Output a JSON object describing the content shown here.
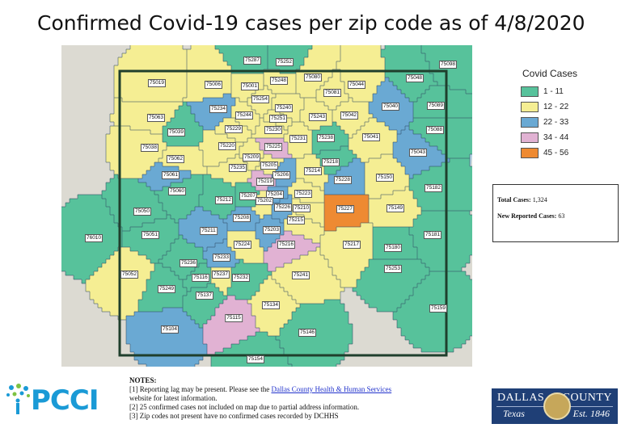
{
  "title": "Confirmed Covid-19 cases per zip code as of 4/8/2020",
  "colors": {
    "c1_11": "#57c29b",
    "c12_22": "#f5ee93",
    "c22_33": "#6aa9d3",
    "c34_44": "#e1b2d3",
    "c45_56": "#ee8a32",
    "background": "#dcdad2"
  },
  "legend": {
    "title": "Covid Cases",
    "items": [
      {
        "label": "1 - 11",
        "color": "#57c29b"
      },
      {
        "label": "12 - 22",
        "color": "#f5ee93"
      },
      {
        "label": "22 - 33",
        "color": "#6aa9d3"
      },
      {
        "label": "34 - 44",
        "color": "#e1b2d3"
      },
      {
        "label": "45 - 56",
        "color": "#ee8a32"
      }
    ]
  },
  "totals": {
    "total_label": "Total Cases:",
    "total_value": "1,324",
    "new_label": "New Reported Cases:",
    "new_value": "63"
  },
  "notes": {
    "heading": "NOTES:",
    "n1_pre": "[1] Reporting lag may be present. Please see the ",
    "n1_link": "Dallas County Health & Human Services",
    "n1_post": "website for latest information.",
    "n2": "[2] 25 confirmed cases not included on map due to partial address information.",
    "n3": "[3] Zip codes not present have no confirmed cases recorded by DCHHS"
  },
  "pcci_logo": "PCCI",
  "county_logo": {
    "word1": "DALLAS",
    "word2": "COUNTY",
    "word3": "Texas",
    "word4": "Est. 1846"
  },
  "zip_labels": [
    {
      "zip": "75287",
      "cat": "c1_11"
    },
    {
      "zip": "75252",
      "cat": "c1_11"
    },
    {
      "zip": "75098",
      "cat": "c1_11"
    },
    {
      "zip": "75080",
      "cat": "c12_22"
    },
    {
      "zip": "75248",
      "cat": "c12_22"
    },
    {
      "zip": "75048",
      "cat": "c1_11"
    },
    {
      "zip": "75019",
      "cat": "c12_22"
    },
    {
      "zip": "75006",
      "cat": "c12_22"
    },
    {
      "zip": "75001",
      "cat": "c12_22"
    },
    {
      "zip": "75044",
      "cat": "c12_22"
    },
    {
      "zip": "75081",
      "cat": "c12_22"
    },
    {
      "zip": "75254",
      "cat": "c12_22"
    },
    {
      "zip": "75040",
      "cat": "c22_33"
    },
    {
      "zip": "75089",
      "cat": "c1_11"
    },
    {
      "zip": "75234",
      "cat": "c22_33"
    },
    {
      "zip": "75240",
      "cat": "c12_22"
    },
    {
      "zip": "75063",
      "cat": "c12_22"
    },
    {
      "zip": "75244",
      "cat": "c12_22"
    },
    {
      "zip": "75251",
      "cat": "c12_22"
    },
    {
      "zip": "75243",
      "cat": "c12_22"
    },
    {
      "zip": "75042",
      "cat": "c12_22"
    },
    {
      "zip": "75229",
      "cat": "c12_22"
    },
    {
      "zip": "75230",
      "cat": "c12_22"
    },
    {
      "zip": "75088",
      "cat": "c1_11"
    },
    {
      "zip": "75039",
      "cat": "c1_11"
    },
    {
      "zip": "75231",
      "cat": "c12_22"
    },
    {
      "zip": "75238",
      "cat": "c1_11"
    },
    {
      "zip": "75041",
      "cat": "c12_22"
    },
    {
      "zip": "75038",
      "cat": "c12_22"
    },
    {
      "zip": "75220",
      "cat": "c12_22"
    },
    {
      "zip": "75225",
      "cat": "c34_44"
    },
    {
      "zip": "75043",
      "cat": "c22_33"
    },
    {
      "zip": "75209",
      "cat": "c12_22"
    },
    {
      "zip": "75062",
      "cat": "c12_22"
    },
    {
      "zip": "75235",
      "cat": "c12_22"
    },
    {
      "zip": "75205",
      "cat": "c12_22"
    },
    {
      "zip": "75218",
      "cat": "c1_11"
    },
    {
      "zip": "75214",
      "cat": "c12_22"
    },
    {
      "zip": "75061",
      "cat": "c22_33"
    },
    {
      "zip": "75206",
      "cat": "c22_33"
    },
    {
      "zip": "75219",
      "cat": "c34_44"
    },
    {
      "zip": "75150",
      "cat": "c12_22"
    },
    {
      "zip": "75228",
      "cat": "c22_33"
    },
    {
      "zip": "75182",
      "cat": "c1_11"
    },
    {
      "zip": "75060",
      "cat": "c1_11"
    },
    {
      "zip": "75204",
      "cat": "c22_33"
    },
    {
      "zip": "75223",
      "cat": "c12_22"
    },
    {
      "zip": "75207",
      "cat": "c1_11"
    },
    {
      "zip": "75212",
      "cat": "c1_11"
    },
    {
      "zip": "75202",
      "cat": "c12_22"
    },
    {
      "zip": "75226",
      "cat": "c22_33"
    },
    {
      "zip": "75210",
      "cat": "c12_22"
    },
    {
      "zip": "75227",
      "cat": "c45_56"
    },
    {
      "zip": "75149",
      "cat": "c12_22"
    },
    {
      "zip": "75050",
      "cat": "c1_11"
    },
    {
      "zip": "75208",
      "cat": "c22_33"
    },
    {
      "zip": "75215",
      "cat": "c12_22"
    },
    {
      "zip": "75211",
      "cat": "c22_33"
    },
    {
      "zip": "75203",
      "cat": "c22_33"
    },
    {
      "zip": "76010",
      "cat": "c1_11"
    },
    {
      "zip": "75051",
      "cat": "c1_11"
    },
    {
      "zip": "75181",
      "cat": "c1_11"
    },
    {
      "zip": "75224",
      "cat": "c12_22"
    },
    {
      "zip": "75216",
      "cat": "c34_44"
    },
    {
      "zip": "75217",
      "cat": "c12_22"
    },
    {
      "zip": "75180",
      "cat": "c1_11"
    },
    {
      "zip": "75233",
      "cat": "c22_33"
    },
    {
      "zip": "75236",
      "cat": "c1_11"
    },
    {
      "zip": "75253",
      "cat": "c1_11"
    },
    {
      "zip": "75052",
      "cat": "c12_22"
    },
    {
      "zip": "75237",
      "cat": "c12_22"
    },
    {
      "zip": "75232",
      "cat": "c1_11"
    },
    {
      "zip": "75241",
      "cat": "c12_22"
    },
    {
      "zip": "75116",
      "cat": "c1_11"
    },
    {
      "zip": "75249",
      "cat": "c1_11"
    },
    {
      "zip": "75137",
      "cat": "c1_11"
    },
    {
      "zip": "75134",
      "cat": "c12_22"
    },
    {
      "zip": "75159",
      "cat": "c1_11"
    },
    {
      "zip": "75115",
      "cat": "c34_44"
    },
    {
      "zip": "75104",
      "cat": "c22_33"
    },
    {
      "zip": "75146",
      "cat": "c1_11"
    },
    {
      "zip": "75154",
      "cat": "c1_11"
    }
  ]
}
